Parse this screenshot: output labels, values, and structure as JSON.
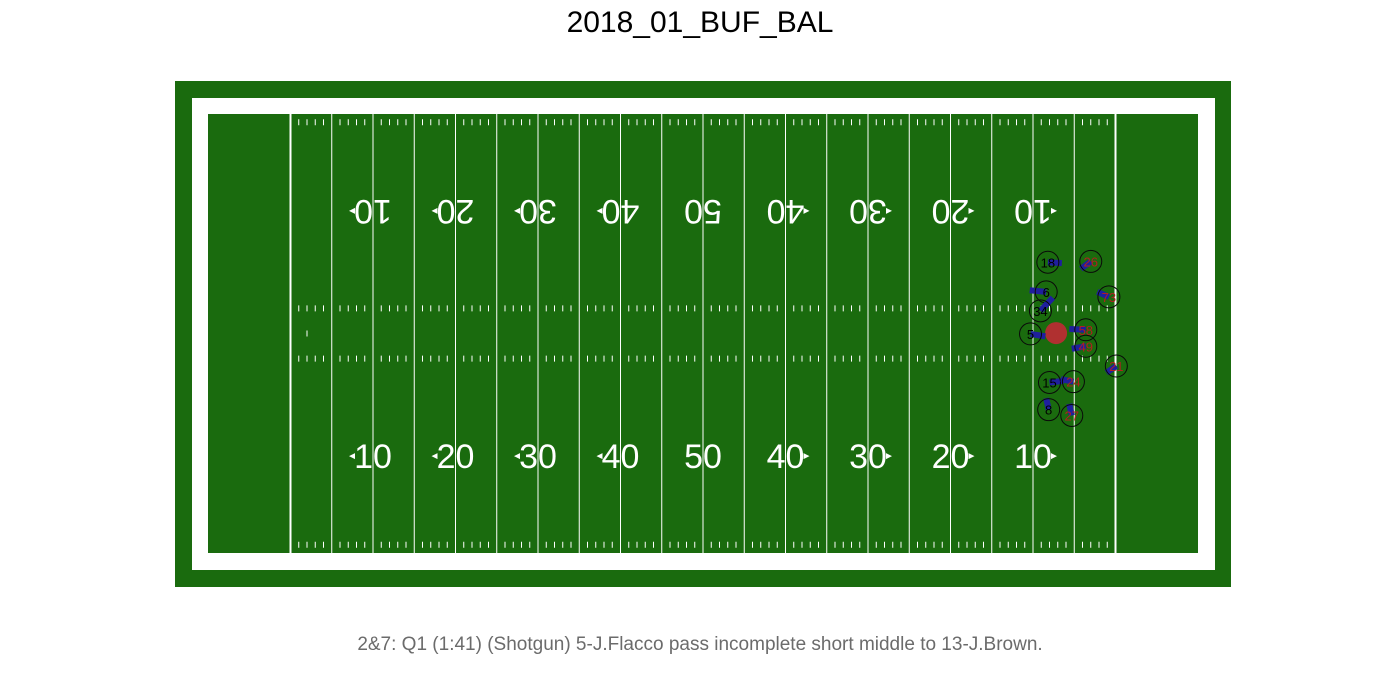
{
  "title": "2018_01_BUF_BAL",
  "caption": "2&7: Q1 (1:41) (Shotgun) 5-J.Flacco pass incomplete short middle to 13-J.Brown.",
  "colors": {
    "field": "#1a6b0e",
    "lines": "#ffffff",
    "away_arrow": "#1f1f9e",
    "football": "#b03030",
    "home_label": "#000000",
    "away_label": "#b02020"
  },
  "chart_data": {
    "type": "scatter",
    "x_axis": {
      "label": "",
      "range": [
        -10,
        110
      ],
      "units": "yards"
    },
    "y_axis": {
      "label": "",
      "range": [
        0,
        53.3
      ],
      "units": "yards"
    },
    "yard_number_labels": [
      "10",
      "20",
      "30",
      "40",
      "50",
      "40",
      "30",
      "20",
      "10"
    ],
    "football": {
      "x": 92.8,
      "y": 26.7
    },
    "players": [
      {
        "number": "18",
        "team": "home",
        "x": 91.8,
        "y": 35.3,
        "dx": 1.7,
        "dy": -0.1
      },
      {
        "number": "6",
        "team": "home",
        "x": 91.6,
        "y": 31.7,
        "dx": -2.0,
        "dy": 0.2
      },
      {
        "number": "34",
        "team": "home",
        "x": 90.9,
        "y": 29.4,
        "dx": 1.5,
        "dy": 1.6
      },
      {
        "number": "5",
        "team": "home",
        "x": 89.7,
        "y": 26.6,
        "dx": 1.8,
        "dy": -0.3
      },
      {
        "number": "15",
        "team": "home",
        "x": 92.0,
        "y": 20.7,
        "dx": 1.7,
        "dy": 0.2
      },
      {
        "number": "8",
        "team": "home",
        "x": 91.9,
        "y": 17.4,
        "dx": -0.3,
        "dy": 1.4
      },
      {
        "number": "26",
        "team": "away",
        "x": 97.0,
        "y": 35.4,
        "dx": -1.2,
        "dy": -0.9
      },
      {
        "number": "73",
        "team": "away",
        "x": 99.2,
        "y": 31.1,
        "dx": -1.4,
        "dy": 0.6
      },
      {
        "number": "58",
        "team": "away",
        "x": 96.4,
        "y": 27.1,
        "dx": -2.0,
        "dy": 0.1
      },
      {
        "number": "49",
        "team": "away",
        "x": 96.4,
        "y": 25.1,
        "dx": -1.7,
        "dy": -0.3
      },
      {
        "number": "21",
        "team": "away",
        "x": 100.1,
        "y": 22.7,
        "dx": -1.2,
        "dy": -0.8
      },
      {
        "number": "24",
        "team": "away",
        "x": 94.9,
        "y": 20.8,
        "dx": -1.5,
        "dy": 0.3
      },
      {
        "number": "27",
        "team": "away",
        "x": 94.7,
        "y": 16.7,
        "dx": -0.3,
        "dy": 1.4
      }
    ]
  }
}
